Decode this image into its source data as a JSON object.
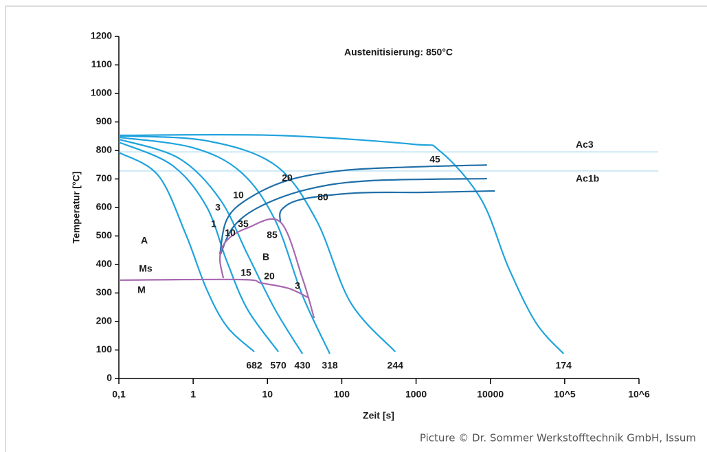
{
  "chart_data": {
    "type": "line",
    "title": "Austenitisierung: 850°C",
    "x_label": "Zeit [s]",
    "y_label": "Temperatur [°C]",
    "x_scale": "log",
    "xlim": [
      0.1,
      1000000
    ],
    "ylim": [
      0,
      1200
    ],
    "xticks": [
      {
        "value": 0.1,
        "label": "0,1"
      },
      1,
      10,
      100,
      1000,
      10000,
      {
        "value": 100000,
        "label": "10^5"
      },
      {
        "value": 1000000,
        "label": "10^6"
      }
    ],
    "yticks": [
      0,
      100,
      200,
      300,
      400,
      500,
      600,
      700,
      800,
      900,
      1000,
      1100,
      1200
    ],
    "reference_lines": [
      {
        "label": "Ac3",
        "value": 795,
        "color": "#bfe3f4"
      },
      {
        "label": "Ac1b",
        "value": 728,
        "color": "#bfe3f4"
      }
    ],
    "series": [
      {
        "color": "#1fa3dd",
        "label": 682,
        "x": [
          0.1,
          0.337,
          0.79,
          1.5,
          2.83,
          6.64
        ],
        "values": [
          793,
          713,
          508,
          316,
          183,
          94
        ]
      },
      {
        "color": "#1fa3dd",
        "label": 570,
        "x": [
          0.1,
          0.515,
          1.5,
          2.83,
          5.37,
          14.0
        ],
        "values": [
          829,
          749,
          605,
          412,
          243,
          94
        ]
      },
      {
        "color": "#1fa3dd",
        "label": 430,
        "x": [
          0.1,
          0.638,
          2.29,
          5.37,
          12.6,
          29.5
        ],
        "values": [
          839,
          773,
          629,
          436,
          243,
          87
        ]
      },
      {
        "color": "#1fa3dd",
        "label": 318,
        "x": [
          0.1,
          0.977,
          4.34,
          12.6,
          29.5,
          69
        ],
        "values": [
          846,
          810,
          725,
          557,
          292,
          87
        ]
      },
      {
        "color": "#1fa3dd",
        "label": 244,
        "x": [
          0.1,
          1.5,
          12.6,
          45.2,
          131,
          524
        ],
        "values": [
          851,
          834,
          749,
          557,
          267,
          94
        ]
      },
      {
        "color": "#1fa3dd",
        "label": 174,
        "x": [
          0.1,
          12.6,
          891,
          2090,
          7500,
          17600,
          41200,
          96600
        ],
        "values": [
          853,
          853,
          822,
          798,
          629,
          388,
          195,
          87
        ]
      },
      {
        "color": "#1f6fa8",
        "x": [
          2.29,
          2.83,
          5.37,
          19.3,
          106,
          891,
          9000
        ],
        "values": [
          436,
          557,
          629,
          696,
          730,
          742,
          749
        ]
      },
      {
        "color": "#1f6fa8",
        "x": [
          2.29,
          3.5,
          8.2,
          36.5,
          248,
          9000
        ],
        "values": [
          431,
          533,
          605,
          665,
          694,
          701
        ]
      },
      {
        "color": "#1f6fa8",
        "x": [
          14.9,
          15.6,
          29.5,
          162,
          1300,
          11500
        ],
        "values": [
          549,
          593,
          629,
          651,
          653,
          658
        ]
      },
      {
        "color": "#a768b0",
        "x": [
          2.55,
          2.29,
          2.83,
          5.37,
          14.9,
          29.5,
          42.4
        ],
        "values": [
          352,
          424,
          484,
          528,
          549,
          352,
          212
        ]
      },
      {
        "color": "#a768b0",
        "x": [
          0.1,
          4.34,
          8.2,
          19.3,
          36.5
        ],
        "values": [
          345,
          347,
          335,
          316,
          282
        ]
      }
    ],
    "annotations": [
      "45",
      "20",
      "80",
      "10",
      "3",
      "1",
      "35",
      "85",
      "10",
      "A",
      "B",
      "Ms",
      "15",
      "20",
      "3",
      "M"
    ],
    "credit": "Picture © Dr. Sommer Werkstofftechnik GmbH, Issum"
  }
}
